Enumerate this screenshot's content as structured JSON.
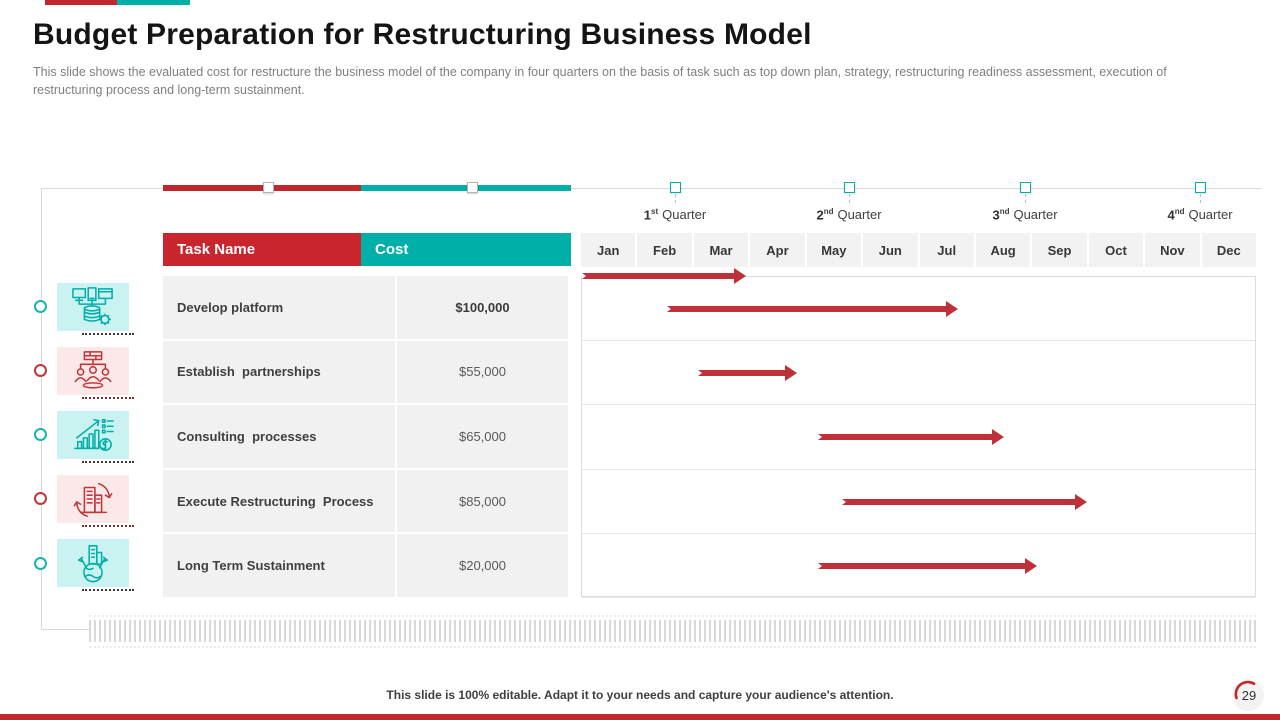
{
  "slide": {
    "title": "Budget Preparation for Restructuring Business Model",
    "subtitle": "This slide shows the evaluated cost for restructure the business model of the company in four quarters on the basis of task such as top down plan, strategy, restructuring readiness assessment, execution of restructuring process and long-term sustainment.",
    "footer": "This slide is 100% editable. Adapt it to your needs and capture your audience's attention.",
    "page_number": "29"
  },
  "colors": {
    "red": "#C0272D",
    "teal": "#00AFA8",
    "arrow_red": "#BE3138",
    "row_bg": "#F1F1F2",
    "teal_tile": "#C9F2F1",
    "red_tile": "#FBE8E8"
  },
  "table": {
    "headers": {
      "task": "Task Name",
      "cost": "Cost"
    },
    "rows": [
      {
        "task": "Develop platform",
        "cost": "$100,000"
      },
      {
        "task": "Establish  partnerships",
        "cost": "$55,000"
      },
      {
        "task": "Consulting  processes",
        "cost": "$65,000"
      },
      {
        "task": "Execute Restructuring  Process",
        "cost": "$85,000"
      },
      {
        "task": "Long Term Sustainment",
        "cost": "$20,000"
      }
    ]
  },
  "timeline": {
    "quarters": [
      {
        "num": "1",
        "suffix": "st",
        "word": "Quarter"
      },
      {
        "num": "2",
        "suffix": "nd",
        "word": "Quarter"
      },
      {
        "num": "3",
        "suffix": "nd",
        "word": "Quarter"
      },
      {
        "num": "4",
        "suffix": "nd",
        "word": "Quarter"
      }
    ],
    "months": [
      "Jan",
      "Feb",
      "Mar",
      "Apr",
      "May",
      "Jun",
      "Jul",
      "Aug",
      "Sep",
      "Oct",
      "Nov",
      "Dec"
    ]
  },
  "chart_data": {
    "type": "gantt",
    "title": "Budget Preparation for Restructuring Business Model",
    "x_axis": {
      "months": [
        "Jan",
        "Feb",
        "Mar",
        "Apr",
        "May",
        "Jun",
        "Jul",
        "Aug",
        "Sep",
        "Oct",
        "Nov",
        "Dec"
      ],
      "quarters": [
        "1st Quarter",
        "2nd Quarter",
        "3nd Quarter",
        "4nd Quarter"
      ]
    },
    "header_arrow": {
      "start_month": 0.0,
      "end_month": 2.93
    },
    "tasks": [
      {
        "name": "Develop platform",
        "cost": "$100,000",
        "start_month": 1.51,
        "end_month": 6.7
      },
      {
        "name": "Establish partnerships",
        "cost": "$55,000",
        "start_month": 2.06,
        "end_month": 3.84
      },
      {
        "name": "Consulting processes",
        "cost": "$65,000",
        "start_month": 4.2,
        "end_month": 7.52
      },
      {
        "name": "Execute Restructuring Process",
        "cost": "$85,000",
        "start_month": 4.64,
        "end_month": 9.01
      },
      {
        "name": "Long Term Sustainment",
        "cost": "$20,000",
        "start_month": 4.2,
        "end_month": 8.11
      }
    ]
  }
}
